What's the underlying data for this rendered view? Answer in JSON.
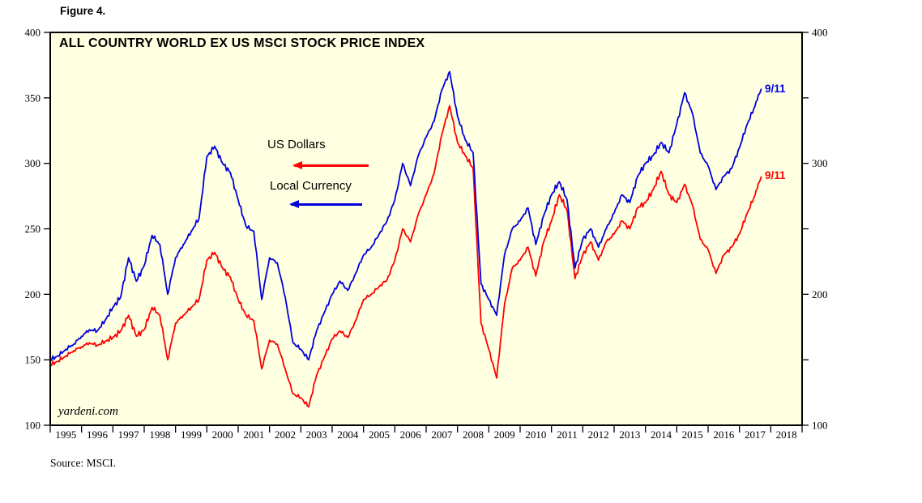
{
  "figure_label": "Figure 4.",
  "source": "Source: MSCI.",
  "watermark": "yardeni.com",
  "legend": {
    "us_dollars": "US Dollars",
    "local_currency": "Local Currency"
  },
  "annotations": {
    "local_end": "9/11",
    "usd_end": "9/11"
  },
  "colors": {
    "us_dollars": "#ff0000",
    "local_currency": "#0000dd",
    "plot_bg": "#ffffe1",
    "axis": "#000000"
  },
  "chart_data": {
    "type": "line",
    "title": "ALL COUNTRY WORLD EX US MSCI STOCK PRICE INDEX",
    "x_range": [
      1995,
      2019
    ],
    "y_range": [
      100,
      400
    ],
    "y_ticks": [
      100,
      150,
      200,
      250,
      300,
      350,
      400
    ],
    "y_ticks_right_labeled": [
      100,
      200,
      300,
      400
    ],
    "x_tick_labels": [
      "1995",
      "1996",
      "1997",
      "1998",
      "1999",
      "2000",
      "2001",
      "2002",
      "2003",
      "2004",
      "2005",
      "2006",
      "2007",
      "2008",
      "2009",
      "2010",
      "2011",
      "2012",
      "2013",
      "2014",
      "2015",
      "2016",
      "2017",
      "2018"
    ],
    "grid": false,
    "legend_position": "inside-left",
    "x": [
      1995,
      1995.25,
      1995.5,
      1995.75,
      1996,
      1996.25,
      1996.5,
      1996.75,
      1997,
      1997.25,
      1997.5,
      1997.75,
      1998,
      1998.25,
      1998.5,
      1998.75,
      1999,
      1999.25,
      1999.5,
      1999.75,
      2000,
      2000.25,
      2000.5,
      2000.75,
      2001,
      2001.25,
      2001.5,
      2001.75,
      2002,
      2002.25,
      2002.5,
      2002.75,
      2003,
      2003.25,
      2003.5,
      2003.75,
      2004,
      2004.25,
      2004.5,
      2004.75,
      2005,
      2005.25,
      2005.5,
      2005.75,
      2006,
      2006.25,
      2006.5,
      2006.75,
      2007,
      2007.25,
      2007.5,
      2007.75,
      2008,
      2008.25,
      2008.5,
      2008.75,
      2009,
      2009.25,
      2009.5,
      2009.75,
      2010,
      2010.25,
      2010.5,
      2010.75,
      2011,
      2011.25,
      2011.5,
      2011.75,
      2012,
      2012.25,
      2012.5,
      2012.75,
      2013,
      2013.25,
      2013.5,
      2013.75,
      2014,
      2014.25,
      2014.5,
      2014.75,
      2015,
      2015.25,
      2015.5,
      2015.75,
      2016,
      2016.25,
      2016.5,
      2016.75,
      2017,
      2017.25,
      2017.5,
      2017.7
    ],
    "series": [
      {
        "name": "US Dollars",
        "color": "#ff0000",
        "end_label": "9/11",
        "end_value": 290,
        "values": [
          146,
          149,
          153,
          157,
          160,
          163,
          161,
          164,
          167,
          172,
          184,
          168,
          173,
          190,
          184,
          150,
          178,
          184,
          190,
          196,
          226,
          232,
          220,
          213,
          196,
          184,
          180,
          143,
          165,
          162,
          143,
          124,
          121,
          114,
          138,
          152,
          166,
          172,
          167,
          180,
          196,
          200,
          206,
          211,
          226,
          250,
          240,
          261,
          276,
          292,
          322,
          344,
          316,
          306,
          296,
          178,
          158,
          136,
          192,
          220,
          226,
          236,
          214,
          240,
          256,
          276,
          264,
          212,
          230,
          240,
          226,
          240,
          246,
          256,
          250,
          266,
          270,
          280,
          294,
          276,
          270,
          284,
          268,
          242,
          234,
          216,
          230,
          236,
          246,
          262,
          276,
          290
        ]
      },
      {
        "name": "Local Currency",
        "color": "#0000dd",
        "end_label": "9/11",
        "end_value": 357,
        "values": [
          150,
          153,
          158,
          162,
          168,
          173,
          172,
          180,
          190,
          198,
          228,
          210,
          222,
          245,
          238,
          200,
          228,
          238,
          248,
          258,
          305,
          313,
          300,
          293,
          272,
          252,
          248,
          196,
          228,
          224,
          198,
          163,
          158,
          150,
          172,
          186,
          200,
          210,
          203,
          216,
          230,
          236,
          246,
          256,
          272,
          300,
          283,
          306,
          320,
          332,
          356,
          370,
          336,
          318,
          308,
          208,
          196,
          184,
          230,
          250,
          256,
          266,
          238,
          260,
          276,
          286,
          272,
          220,
          242,
          250,
          236,
          250,
          262,
          276,
          270,
          290,
          300,
          306,
          316,
          308,
          330,
          354,
          338,
          308,
          298,
          280,
          290,
          296,
          312,
          330,
          344,
          357
        ]
      }
    ]
  }
}
